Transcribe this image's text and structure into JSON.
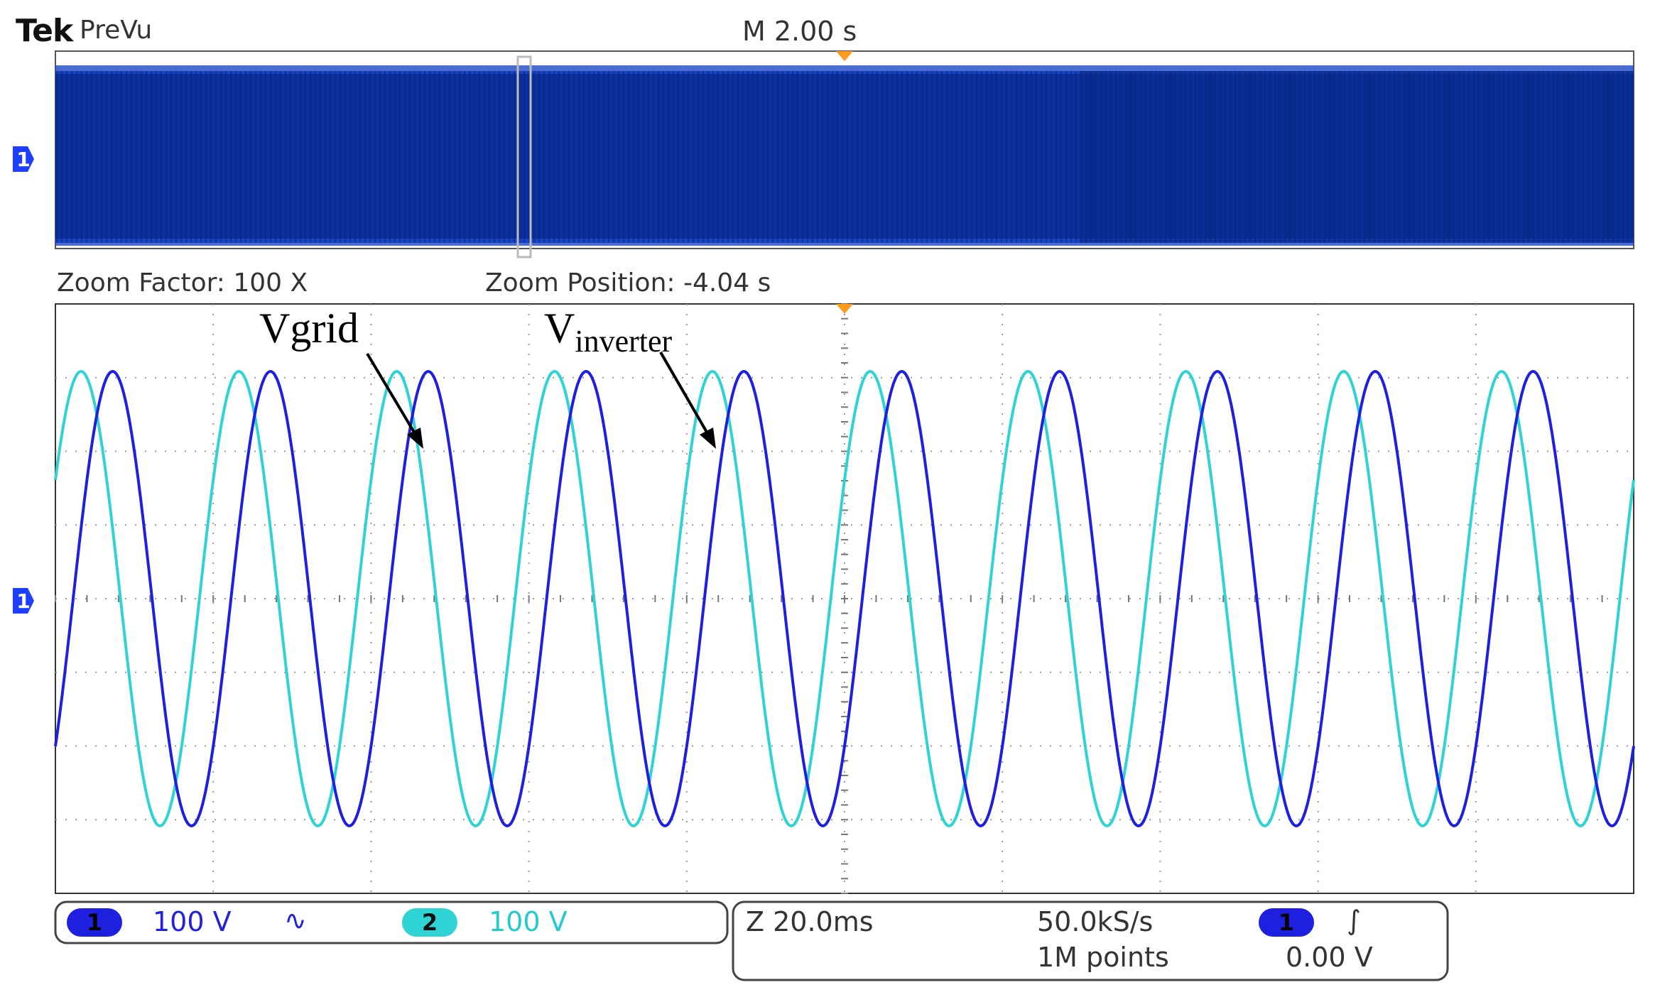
{
  "header": {
    "brand": "Tek",
    "mode": "PreVu",
    "timebase": "M 2.00 s"
  },
  "zoom": {
    "factor_label": "Zoom Factor: 100 X",
    "position_label": "Zoom Position: -4.04 s"
  },
  "markers": {
    "ch1": "1"
  },
  "annotations": {
    "vgrid": "Vgrid",
    "vinverter_main": "V",
    "vinverter_sub": "inverter"
  },
  "channels": [
    {
      "number": "1",
      "scale": "100 V",
      "coupling_icon": "∿",
      "color": "#1f1fe0"
    },
    {
      "number": "2",
      "scale": "100 V",
      "color": "#2fd3d3"
    }
  ],
  "acquisition": {
    "zoom_scale": "Z 20.0ms",
    "sample_rate": "50.0kS/s",
    "record_length": "1M points",
    "trigger_channel": "1",
    "trigger_slope_icon": "∫",
    "trigger_level": "0.00 V"
  },
  "colors": {
    "ch1": "#1f1fe0",
    "ch1_overview": "#0b2f9c",
    "ch2": "#2fd3d3",
    "trigger_marker": "#ff9a1a"
  },
  "waveforms": {
    "ch1": {
      "cycles": 10,
      "phase_lag_fraction_of_cycle": 0.2
    },
    "ch2": {
      "cycles": 10
    }
  }
}
